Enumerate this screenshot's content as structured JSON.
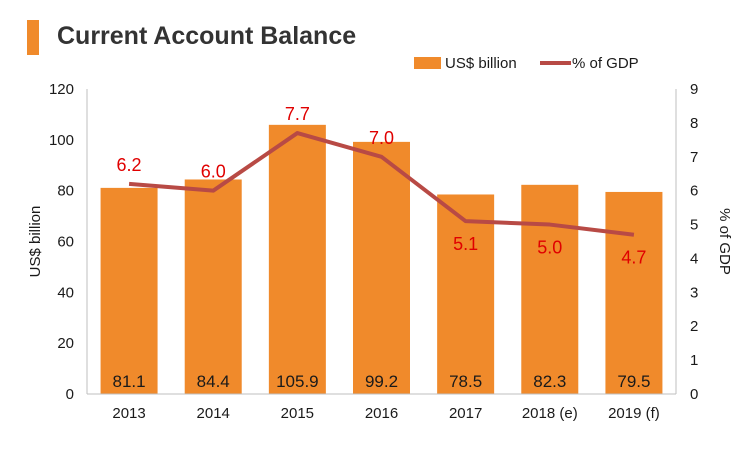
{
  "title": "Current Account Balance",
  "colors": {
    "accent": "#F08A2B",
    "bar": "#F08A2B",
    "line": "#B84A45",
    "line_label": "#E00000",
    "text": "#1a1a1a",
    "axis": "#bfbfbf"
  },
  "chart_data": {
    "type": "bar",
    "title": "Current Account Balance",
    "categories": [
      "2013",
      "2014",
      "2015",
      "2016",
      "2017",
      "2018 (e)",
      "2019 (f)"
    ],
    "series": [
      {
        "name": "US$ billion",
        "type": "bar",
        "axis": "left",
        "values": [
          81.1,
          84.4,
          105.9,
          99.2,
          78.5,
          82.3,
          79.5
        ],
        "labels": [
          "81.1",
          "84.4",
          "105.9",
          "99.2",
          "78.5",
          "82.3",
          "79.5"
        ]
      },
      {
        "name": "% of GDP",
        "type": "line",
        "axis": "right",
        "values": [
          6.2,
          6.0,
          7.7,
          7.0,
          5.1,
          5.0,
          4.7
        ],
        "labels": [
          "6.2",
          "6.0",
          "7.7",
          "7.0",
          "5.1",
          "5.0",
          "4.7"
        ]
      }
    ],
    "ylabel": "US$ billion",
    "ylim": [
      0,
      120
    ],
    "yticks": [
      "0",
      "20",
      "40",
      "60",
      "80",
      "100",
      "120"
    ],
    "y2label": "% of GDP",
    "y2lim": [
      0,
      9
    ],
    "y2ticks": [
      "0",
      "1",
      "2",
      "3",
      "4",
      "5",
      "6",
      "7",
      "8",
      "9"
    ],
    "legend": {
      "placement": "top-right",
      "entries": [
        "US$ billion",
        "% of GDP"
      ]
    },
    "grid": false
  }
}
